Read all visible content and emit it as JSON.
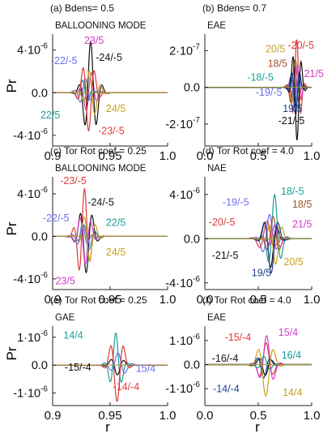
{
  "figure": {
    "y_axis_label": "Pr",
    "x_axis_label": "r"
  },
  "chart_data": [
    {
      "id": "a",
      "type": "line",
      "panel_label": "(a)",
      "header": "Bdens= 0.5",
      "mode_label": "BALLOONING MODE",
      "xlim": [
        0.9,
        1.0
      ],
      "ylim": [
        -5e-06,
        5.5e-06
      ],
      "xticks": [
        "0.9",
        "0.95",
        "1.0"
      ],
      "yticks": [
        {
          "v": 4e-06,
          "m": "4",
          "e": "-6",
          "s": ""
        },
        {
          "v": 0,
          "plain": "0.0"
        },
        {
          "v": -4e-06,
          "m": "4",
          "e": "-6",
          "s": "-"
        }
      ],
      "annotations": [
        {
          "text": "23/5",
          "color": "#d63cc8",
          "x": 0.936,
          "y": 4.6e-06
        },
        {
          "text": "-22/-5",
          "color": "#6c6ff0",
          "x": 0.91,
          "y": 2.7e-06
        },
        {
          "text": "-24/-5",
          "color": "#111111",
          "x": 0.949,
          "y": 3e-06
        },
        {
          "text": "22/5",
          "color": "#1a9e95",
          "x": 0.898,
          "y": -2.4e-06
        },
        {
          "text": "24/5",
          "color": "#c8a020",
          "x": 0.955,
          "y": -1.8e-06
        },
        {
          "text": "-23/-5",
          "color": "#e03a3a",
          "x": 0.951,
          "y": -3.9e-06
        }
      ],
      "series": [
        {
          "label": "23/5",
          "color": "#d63cc8",
          "center": 0.932,
          "width": 0.0048,
          "amp": 2e-06,
          "freq": 3.0,
          "phase": 0.4
        },
        {
          "label": "-22/-5",
          "color": "#6c6ff0",
          "center": 0.928,
          "width": 0.0048,
          "amp": 1.3e-06,
          "freq": 3.0,
          "phase": 1.2
        },
        {
          "label": "-24/-5",
          "color": "#111111",
          "center": 0.933,
          "width": 0.0052,
          "amp": 4.8e-06,
          "freq": 3.1,
          "phase": 1.55
        },
        {
          "label": "22/5",
          "color": "#1a9e95",
          "center": 0.927,
          "width": 0.0045,
          "amp": 1.2e-06,
          "freq": 3.0,
          "phase": 2.2
        },
        {
          "label": "24/5",
          "color": "#c8a020",
          "center": 0.934,
          "width": 0.005,
          "amp": 2.3e-06,
          "freq": 3.0,
          "phase": 3.0
        },
        {
          "label": "-23/-5",
          "color": "#e03a3a",
          "center": 0.931,
          "width": 0.005,
          "amp": 3.6e-06,
          "freq": 3.0,
          "phase": 4.5
        }
      ]
    },
    {
      "id": "b",
      "type": "line",
      "panel_label": "(b)",
      "header": "Bdens= 0.7",
      "mode_label": "EAE",
      "xlim": [
        0.0,
        1.0
      ],
      "ylim": [
        -3.2e-07,
        2.9e-07
      ],
      "xticks": [
        "0.0",
        "0.5",
        "1.0"
      ],
      "yticks": [
        {
          "v": 2e-07,
          "m": "2",
          "e": "-7",
          "s": ""
        },
        {
          "v": 0,
          "plain": "0.0"
        },
        {
          "v": -2e-07,
          "m": "2",
          "e": "-7",
          "s": "-"
        }
      ],
      "annotations": [
        {
          "text": "20/5",
          "color": "#c8a020",
          "x": 0.66,
          "y": 1.9e-07
        },
        {
          "text": "-20/-5",
          "color": "#e03a3a",
          "x": 0.9,
          "y": 2.1e-07
        },
        {
          "text": "18/5",
          "color": "#a0522d",
          "x": 0.68,
          "y": 1.1e-07
        },
        {
          "text": "21/5",
          "color": "#d63cc8",
          "x": 1.02,
          "y": 5.5e-08
        },
        {
          "text": "-18/-5",
          "color": "#1a9e95",
          "x": 0.52,
          "y": 3.5e-08
        },
        {
          "text": "-19/-5",
          "color": "#6c6ff0",
          "x": 0.6,
          "y": -4.5e-08
        },
        {
          "text": "19/5",
          "color": "#1f3f8f",
          "x": 0.82,
          "y": -1.35e-07
        },
        {
          "text": "-21/-5",
          "color": "#111111",
          "x": 0.81,
          "y": -2e-07
        }
      ],
      "series": [
        {
          "label": "20/5",
          "color": "#c8a020",
          "center": 0.85,
          "width": 0.038,
          "amp": 1.4e-07,
          "freq": 2.6,
          "phase": 1.3
        },
        {
          "label": "-20/-5",
          "color": "#e03a3a",
          "center": 0.86,
          "width": 0.034,
          "amp": 2.6e-07,
          "freq": 2.6,
          "phase": 1.6
        },
        {
          "label": "18/5",
          "color": "#a0522d",
          "center": 0.84,
          "width": 0.035,
          "amp": 1.5e-07,
          "freq": 2.6,
          "phase": 1.5
        },
        {
          "label": "21/5",
          "color": "#d63cc8",
          "center": 0.87,
          "width": 0.03,
          "amp": 1.2e-07,
          "freq": 2.6,
          "phase": 1.7
        },
        {
          "label": "-18/-5",
          "color": "#1a9e95",
          "center": 0.85,
          "width": 0.032,
          "amp": 9e-08,
          "freq": 2.6,
          "phase": 4.4
        },
        {
          "label": "-19/-5",
          "color": "#6c6ff0",
          "center": 0.84,
          "width": 0.035,
          "amp": 1.1e-07,
          "freq": 2.6,
          "phase": 4.6
        },
        {
          "label": "19/5",
          "color": "#1f3f8f",
          "center": 0.85,
          "width": 0.034,
          "amp": 1.5e-07,
          "freq": 2.6,
          "phase": 4.7
        },
        {
          "label": "-21/-5",
          "color": "#111111",
          "center": 0.86,
          "width": 0.035,
          "amp": 2.9e-07,
          "freq": 2.6,
          "phase": 4.5
        }
      ]
    },
    {
      "id": "c",
      "type": "line",
      "panel_label": "(c)",
      "header": "Tor Rot coef = 0.25",
      "mode_label": "BALLOONING MODE",
      "xlim": [
        0.9,
        1.0
      ],
      "ylim": [
        -5e-06,
        5.6e-06
      ],
      "xticks": [
        "0.9",
        "0.95",
        "1.0"
      ],
      "yticks": [
        {
          "v": 4e-06,
          "m": "4",
          "e": "-6",
          "s": ""
        },
        {
          "v": 0,
          "plain": "0.0"
        },
        {
          "v": -4e-06,
          "m": "4",
          "e": "-6",
          "s": "-"
        }
      ],
      "annotations": [
        {
          "text": "-23/-5",
          "color": "#e03a3a",
          "x": 0.918,
          "y": 4.9e-06
        },
        {
          "text": "-24/-5",
          "color": "#111111",
          "x": 0.942,
          "y": 2.9e-06
        },
        {
          "text": "-22/-5",
          "color": "#6c6ff0",
          "x": 0.903,
          "y": 1.4e-06
        },
        {
          "text": "22/5",
          "color": "#1a9e95",
          "x": 0.955,
          "y": 1e-06
        },
        {
          "text": "24/5",
          "color": "#c8a020",
          "x": 0.955,
          "y": -1.8e-06
        },
        {
          "text": "23/5",
          "color": "#d63cc8",
          "x": 0.911,
          "y": -4.5e-06
        }
      ],
      "series": [
        {
          "label": "-23/-5",
          "color": "#e03a3a",
          "center": 0.927,
          "width": 0.0048,
          "amp": 4.5e-06,
          "freq": 3.0,
          "phase": 1.1
        },
        {
          "label": "-24/-5",
          "color": "#111111",
          "center": 0.929,
          "width": 0.0052,
          "amp": 3.4e-06,
          "freq": 3.0,
          "phase": 4.6
        },
        {
          "label": "-22/-5",
          "color": "#6c6ff0",
          "center": 0.926,
          "width": 0.0045,
          "amp": 1.2e-06,
          "freq": 3.0,
          "phase": 1.6
        },
        {
          "label": "22/5",
          "color": "#1a9e95",
          "center": 0.93,
          "width": 0.005,
          "amp": 1.3e-06,
          "freq": 3.0,
          "phase": 3.5
        },
        {
          "label": "24/5",
          "color": "#c8a020",
          "center": 0.931,
          "width": 0.005,
          "amp": 2.4e-06,
          "freq": 3.0,
          "phase": 3.9
        },
        {
          "label": "23/5",
          "color": "#d63cc8",
          "center": 0.928,
          "width": 0.0048,
          "amp": 2.6e-06,
          "freq": 3.0,
          "phase": 4.4
        }
      ]
    },
    {
      "id": "d",
      "type": "line",
      "panel_label": "(d)",
      "header": "Tor Rot coef = 4.0",
      "mode_label": "NAE",
      "xlim": [
        0.0,
        1.0
      ],
      "ylim": [
        -4.6e-06,
        5.6e-06
      ],
      "xticks": [
        "0.0",
        "0.5",
        "1.0"
      ],
      "yticks": [
        {
          "v": 4e-06,
          "m": "4",
          "e": "-6",
          "s": ""
        },
        {
          "v": 0,
          "plain": "0.0"
        },
        {
          "v": -4e-06,
          "m": "4",
          "e": "-6",
          "s": "-"
        }
      ],
      "annotations": [
        {
          "text": "18/-5",
          "color": "#1a9e95",
          "x": 0.82,
          "y": 4e-06
        },
        {
          "text": "-19/-5",
          "color": "#6c6ff0",
          "x": 0.29,
          "y": 3e-06
        },
        {
          "text": "18/5",
          "color": "#a0522d",
          "x": 0.91,
          "y": 2.8e-06
        },
        {
          "text": "-20/-5",
          "color": "#e03a3a",
          "x": 0.16,
          "y": 1.2e-06
        },
        {
          "text": "21/5",
          "color": "#d63cc8",
          "x": 0.91,
          "y": 1e-06
        },
        {
          "text": "-21/-5",
          "color": "#111111",
          "x": 0.19,
          "y": -1.8e-06
        },
        {
          "text": "20/5",
          "color": "#c8a020",
          "x": 0.83,
          "y": -2.4e-06
        },
        {
          "text": "19/5",
          "color": "#1f3f8f",
          "x": 0.53,
          "y": -3.4e-06
        }
      ],
      "series": [
        {
          "label": "18/-5",
          "color": "#1a9e95",
          "center": 0.65,
          "width": 0.05,
          "amp": 4e-06,
          "freq": 2.4,
          "phase": 1.4
        },
        {
          "label": "-19/-5",
          "color": "#6c6ff0",
          "center": 0.6,
          "width": 0.055,
          "amp": 2.2e-06,
          "freq": 2.4,
          "phase": 1.3
        },
        {
          "label": "18/5",
          "color": "#a0522d",
          "center": 0.64,
          "width": 0.05,
          "amp": 2e-06,
          "freq": 2.4,
          "phase": 1.6
        },
        {
          "label": "-20/-5",
          "color": "#e03a3a",
          "center": 0.58,
          "width": 0.06,
          "amp": 1.6e-06,
          "freq": 2.4,
          "phase": 1.5
        },
        {
          "label": "21/5",
          "color": "#d63cc8",
          "center": 0.66,
          "width": 0.045,
          "amp": 1.3e-06,
          "freq": 2.4,
          "phase": 1.9
        },
        {
          "label": "-21/-5",
          "color": "#111111",
          "center": 0.61,
          "width": 0.05,
          "amp": 2.6e-06,
          "freq": 2.4,
          "phase": 4.4
        },
        {
          "label": "20/5",
          "color": "#c8a020",
          "center": 0.66,
          "width": 0.05,
          "amp": 2.3e-06,
          "freq": 2.4,
          "phase": 4.6
        },
        {
          "label": "19/5",
          "color": "#1f3f8f",
          "center": 0.62,
          "width": 0.055,
          "amp": 3.1e-06,
          "freq": 2.4,
          "phase": 4.7
        }
      ]
    },
    {
      "id": "e",
      "type": "line",
      "panel_label": "(e)",
      "header": "Tor Rot coef = 0.25",
      "mode_label": "GAE",
      "xlim": [
        0.9,
        1.0
      ],
      "ylim": [
        -1.45e-06,
        1.4e-06
      ],
      "xticks": [
        "0.9",
        "0.95",
        "1.0"
      ],
      "yticks": [
        {
          "v": 1e-06,
          "m": "1",
          "e": "-6",
          "s": ""
        },
        {
          "v": 0,
          "plain": "0.0"
        },
        {
          "v": -1e-06,
          "m": "1",
          "e": "-6",
          "s": "-"
        }
      ],
      "annotations": [
        {
          "text": "14/4",
          "color": "#1a9e95",
          "x": 0.918,
          "y": 9.5e-07
        },
        {
          "text": "-15/-4",
          "color": "#111111",
          "x": 0.922,
          "y": -2e-07
        },
        {
          "text": "15/4",
          "color": "#6c6ff0",
          "x": 0.981,
          "y": -2.5e-07
        },
        {
          "text": "-14/-4",
          "color": "#e03a3a",
          "x": 0.964,
          "y": -9e-07
        }
      ],
      "series": [
        {
          "label": "14/4",
          "color": "#1a9e95",
          "center": 0.955,
          "width": 0.0045,
          "amp": 1.15e-06,
          "freq": 2.6,
          "phase": 1.6
        },
        {
          "label": "-15/-4",
          "color": "#111111",
          "center": 0.956,
          "width": 0.005,
          "amp": 3.5e-07,
          "freq": 2.6,
          "phase": 4.5
        },
        {
          "label": "15/4",
          "color": "#6c6ff0",
          "center": 0.958,
          "width": 0.0055,
          "amp": 4.5e-07,
          "freq": 2.6,
          "phase": 2.2
        },
        {
          "label": "-14/-4",
          "color": "#e03a3a",
          "center": 0.956,
          "width": 0.005,
          "amp": 1.3e-06,
          "freq": 2.6,
          "phase": 4.7
        }
      ]
    },
    {
      "id": "f",
      "type": "line",
      "panel_label": "(f)",
      "header": "Tor Rot coef = 4.0",
      "mode_label": "EAE",
      "xlim": [
        0.0,
        1.0
      ],
      "ylim": [
        -1.7e-06,
        1.6e-06
      ],
      "xticks": [
        "0.0",
        "0.5",
        "1.0"
      ],
      "yticks": [
        {
          "v": 1e-06,
          "m": "1",
          "e": "-6",
          "s": ""
        },
        {
          "v": 0,
          "plain": "0.0"
        },
        {
          "v": -1e-06,
          "m": "1",
          "e": "-6",
          "s": "-"
        }
      ],
      "annotations": [
        {
          "text": "-15/-4",
          "color": "#e03a3a",
          "x": 0.31,
          "y": 1e-06
        },
        {
          "text": "15/4",
          "color": "#d63cc8",
          "x": 0.78,
          "y": 1.2e-06
        },
        {
          "text": "16/4",
          "color": "#1a9e95",
          "x": 0.81,
          "y": 2.5e-07
        },
        {
          "text": "-16/-4",
          "color": "#111111",
          "x": 0.19,
          "y": 1.2e-07
        },
        {
          "text": "-14/-4",
          "color": "#1f3f8f",
          "x": 0.2,
          "y": -1.15e-06
        },
        {
          "text": "14/4",
          "color": "#c8a020",
          "x": 0.82,
          "y": -1.3e-06
        }
      ],
      "series": [
        {
          "label": "-15/-4",
          "color": "#e03a3a",
          "center": 0.57,
          "width": 0.055,
          "amp": 9e-07,
          "freq": 2.4,
          "phase": 1.4
        },
        {
          "label": "15/4",
          "color": "#d63cc8",
          "center": 0.58,
          "width": 0.055,
          "amp": 1.2e-06,
          "freq": 2.4,
          "phase": 1.7
        },
        {
          "label": "16/4",
          "color": "#1a9e95",
          "center": 0.56,
          "width": 0.05,
          "amp": 3.5e-07,
          "freq": 2.4,
          "phase": 2.0
        },
        {
          "label": "-16/-4",
          "color": "#111111",
          "center": 0.56,
          "width": 0.05,
          "amp": 4.5e-07,
          "freq": 2.4,
          "phase": 4.4
        },
        {
          "label": "-14/-4",
          "color": "#1f3f8f",
          "center": 0.55,
          "width": 0.05,
          "amp": 5.5e-07,
          "freq": 2.4,
          "phase": 4.6
        },
        {
          "label": "14/4",
          "color": "#c8a020",
          "center": 0.57,
          "width": 0.06,
          "amp": 1.3e-06,
          "freq": 2.4,
          "phase": 4.7
        }
      ]
    }
  ]
}
